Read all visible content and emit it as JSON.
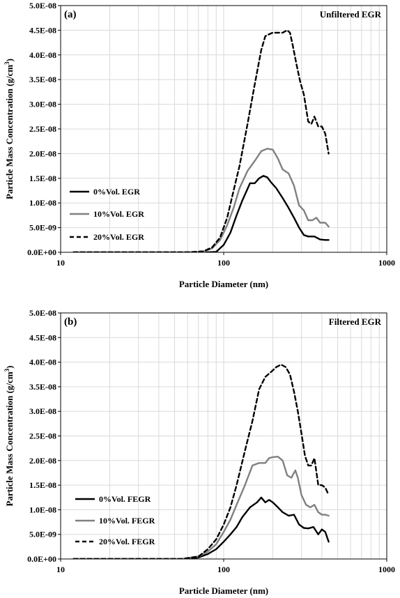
{
  "chart_data": [
    {
      "type": "line",
      "panel_label": "(a)",
      "title": "Unfiltered EGR",
      "xlabel": "Particle Diameter (nm)",
      "ylabel_main": "Particle Mass Concentration (g/cm",
      "ylabel_sup": "3",
      "ylabel_end": ")",
      "x_scale": "log",
      "xlim": [
        10,
        1000
      ],
      "ylim": [
        0,
        5e-08
      ],
      "x_tick_values": [
        10,
        100,
        1000
      ],
      "x_tick_labels": [
        "10",
        "100",
        "1000"
      ],
      "y_tick_values": [
        0,
        5e-09,
        1e-08,
        1.5e-08,
        2e-08,
        2.5e-08,
        3e-08,
        3.5e-08,
        4e-08,
        4.5e-08,
        5e-08
      ],
      "y_tick_labels": [
        "0.0E+00",
        "5.0E-09",
        "1.0E-08",
        "1.5E-08",
        "2.0E-08",
        "2.5E-08",
        "3.0E-08",
        "3.5E-08",
        "4.0E-08",
        "4.5E-08",
        "5.0E-08"
      ],
      "grid": true,
      "legend_position": "left",
      "series": [
        {
          "name": "0%Vol. EGR",
          "color": "#000000",
          "style": "solid",
          "x": [
            12,
            30,
            60,
            80,
            90,
            100,
            110,
            120,
            130,
            145,
            155,
            165,
            175,
            185,
            195,
            210,
            230,
            250,
            270,
            290,
            310,
            330,
            360,
            390,
            420,
            440
          ],
          "y": [
            0,
            0,
            0,
            0,
            1e-10,
            1.5e-09,
            4e-09,
            7.5e-09,
            1.05e-08,
            1.4e-08,
            1.4e-08,
            1.5e-08,
            1.55e-08,
            1.52e-08,
            1.42e-08,
            1.3e-08,
            1.1e-08,
            9e-09,
            7e-09,
            5e-09,
            3.5e-09,
            3.2e-09,
            3.2e-09,
            2.6e-09,
            2.5e-09,
            2.5e-09
          ]
        },
        {
          "name": "10%Vol. EGR",
          "color": "#808080",
          "style": "solid",
          "x": [
            12,
            30,
            60,
            75,
            85,
            95,
            105,
            115,
            125,
            140,
            155,
            170,
            185,
            200,
            215,
            230,
            250,
            270,
            290,
            310,
            330,
            350,
            370,
            390,
            420,
            440
          ],
          "y": [
            0,
            0,
            0,
            1e-10,
            8e-10,
            2.5e-09,
            5.5e-09,
            9e-09,
            1.3e-08,
            1.65e-08,
            1.85e-08,
            2.05e-08,
            2.1e-08,
            2.08e-08,
            1.9e-08,
            1.68e-08,
            1.6e-08,
            1.35e-08,
            9.5e-09,
            8.5e-09,
            6.5e-09,
            6.5e-09,
            7e-09,
            6e-09,
            6e-09,
            5.2e-09
          ]
        },
        {
          "name": "20%Vol. EGR",
          "color": "#000000",
          "style": "dashed",
          "x": [
            12,
            30,
            60,
            75,
            85,
            95,
            105,
            115,
            125,
            140,
            155,
            170,
            180,
            190,
            200,
            215,
            230,
            245,
            255,
            265,
            280,
            295,
            310,
            330,
            345,
            360,
            380,
            400,
            420,
            440
          ],
          "y": [
            0,
            0,
            0,
            2e-10,
            1e-09,
            3e-09,
            7e-09,
            1.25e-08,
            1.75e-08,
            2.6e-08,
            3.4e-08,
            4.1e-08,
            4.38e-08,
            4.42e-08,
            4.45e-08,
            4.45e-08,
            4.45e-08,
            4.5e-08,
            4.45e-08,
            4.2e-08,
            3.8e-08,
            3.45e-08,
            3.2e-08,
            2.65e-08,
            2.6e-08,
            2.75e-08,
            2.55e-08,
            2.55e-08,
            2.4e-08,
            2e-08
          ]
        }
      ]
    },
    {
      "type": "line",
      "panel_label": "(b)",
      "title": "Filtered EGR",
      "xlabel": "Particle Diameter (nm)",
      "ylabel_main": "Particle Mass Concentration (g/cm",
      "ylabel_sup": "3",
      "ylabel_end": ")",
      "x_scale": "log",
      "xlim": [
        10,
        1000
      ],
      "ylim": [
        0,
        5e-08
      ],
      "x_tick_values": [
        10,
        100,
        1000
      ],
      "x_tick_labels": [
        "10",
        "100",
        "1000"
      ],
      "y_tick_values": [
        0,
        5e-09,
        1e-08,
        1.5e-08,
        2e-08,
        2.5e-08,
        3e-08,
        3.5e-08,
        4e-08,
        4.5e-08,
        5e-08
      ],
      "y_tick_labels": [
        "0.0E+00",
        "5.0E-09",
        "1.0E-08",
        "1.5E-08",
        "2.0E-08",
        "2.5E-08",
        "3.0E-08",
        "3.5E-08",
        "4.0E-08",
        "4.5E-08",
        "5.0E-08"
      ],
      "grid": true,
      "legend_position": "left",
      "series": [
        {
          "name": "0%Vol. FEGR",
          "color": "#000000",
          "style": "solid",
          "x": [
            12,
            30,
            55,
            70,
            80,
            90,
            100,
            110,
            120,
            130,
            145,
            160,
            170,
            180,
            190,
            200,
            215,
            230,
            250,
            270,
            290,
            310,
            330,
            355,
            380,
            400,
            420,
            440
          ],
          "y": [
            0,
            0,
            0,
            3e-10,
            1e-09,
            2e-09,
            3.5e-09,
            5e-09,
            6.5e-09,
            8.5e-09,
            1.05e-08,
            1.15e-08,
            1.25e-08,
            1.15e-08,
            1.2e-08,
            1.15e-08,
            1.05e-08,
            9.5e-09,
            8.8e-09,
            9e-09,
            7e-09,
            6.3e-09,
            6.2e-09,
            6.5e-09,
            5e-09,
            6e-09,
            5.5e-09,
            3.5e-09
          ]
        },
        {
          "name": "10%Vol. FEGR",
          "color": "#808080",
          "style": "solid",
          "x": [
            12,
            30,
            55,
            70,
            80,
            90,
            100,
            110,
            120,
            135,
            150,
            165,
            180,
            190,
            200,
            215,
            230,
            245,
            260,
            275,
            285,
            300,
            320,
            340,
            360,
            380,
            400,
            420,
            440
          ],
          "y": [
            0,
            0,
            0,
            5e-10,
            1.5e-09,
            3e-09,
            5.5e-09,
            8e-09,
            1.1e-08,
            1.5e-08,
            1.9e-08,
            1.95e-08,
            1.95e-08,
            2.05e-08,
            2.07e-08,
            2.08e-08,
            2e-08,
            1.7e-08,
            1.65e-08,
            1.8e-08,
            1.65e-08,
            1.3e-08,
            1.1e-08,
            1.05e-08,
            1.1e-08,
            9.5e-09,
            9e-09,
            9e-09,
            8.8e-09
          ]
        },
        {
          "name": "20%Vol. FEGR",
          "color": "#000000",
          "style": "dashed",
          "x": [
            12,
            30,
            55,
            70,
            80,
            90,
            100,
            110,
            120,
            135,
            150,
            165,
            180,
            195,
            210,
            225,
            240,
            255,
            270,
            285,
            300,
            315,
            330,
            345,
            360,
            380,
            400,
            420,
            440
          ],
          "y": [
            0,
            0,
            0,
            5e-10,
            2e-09,
            4e-09,
            7e-09,
            1.05e-08,
            1.5e-08,
            2.2e-08,
            2.8e-08,
            3.45e-08,
            3.7e-08,
            3.8e-08,
            3.9e-08,
            3.95e-08,
            3.9e-08,
            3.75e-08,
            3.4e-08,
            3e-08,
            2.55e-08,
            2.1e-08,
            1.9e-08,
            1.9e-08,
            2.05e-08,
            1.5e-08,
            1.5e-08,
            1.45e-08,
            1.3e-08
          ]
        }
      ]
    }
  ]
}
